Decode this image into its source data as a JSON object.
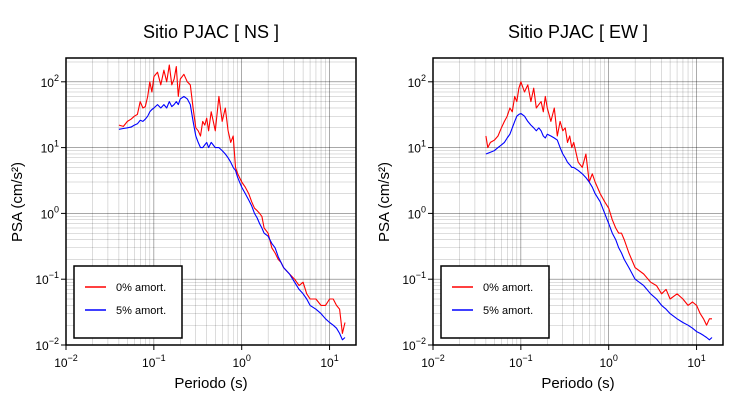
{
  "chart_data": [
    {
      "type": "line",
      "title": "Sitio PJAC [ NS ]",
      "xlabel": "Periodo (s)",
      "ylabel": "PSA (cm/s²)",
      "x_scale": "log",
      "y_scale": "log",
      "xlim": [
        0.01,
        20
      ],
      "ylim": [
        0.01,
        230
      ],
      "xticks": [
        {
          "base": "10",
          "exp": "−2"
        },
        {
          "base": "10",
          "exp": "−1"
        },
        {
          "base": "10",
          "exp": "0"
        },
        {
          "base": "10",
          "exp": "1"
        }
      ],
      "yticks": [
        {
          "base": "10",
          "exp": "−2"
        },
        {
          "base": "10",
          "exp": "−1"
        },
        {
          "base": "10",
          "exp": "0"
        },
        {
          "base": "10",
          "exp": "1"
        },
        {
          "base": "10",
          "exp": "2"
        }
      ],
      "grid": true,
      "legend_position": "bottom-left",
      "series": [
        {
          "name": "0% amort.",
          "color": "#ff0000",
          "x": [
            0.04,
            0.045,
            0.05,
            0.055,
            0.06,
            0.065,
            0.07,
            0.075,
            0.08,
            0.085,
            0.09,
            0.095,
            0.1,
            0.11,
            0.12,
            0.13,
            0.14,
            0.15,
            0.16,
            0.17,
            0.18,
            0.19,
            0.2,
            0.22,
            0.24,
            0.26,
            0.28,
            0.3,
            0.32,
            0.34,
            0.36,
            0.38,
            0.4,
            0.42,
            0.45,
            0.5,
            0.55,
            0.6,
            0.65,
            0.7,
            0.75,
            0.8,
            0.85,
            0.9,
            1.0,
            1.1,
            1.2,
            1.3,
            1.4,
            1.5,
            1.6,
            1.7,
            1.8,
            2.0,
            2.2,
            2.4,
            2.6,
            2.8,
            3.0,
            3.5,
            4.0,
            4.5,
            5.0,
            5.5,
            6.0,
            7.0,
            8.0,
            9.0,
            10.0,
            11.0,
            12.0,
            13.0,
            14.0,
            15.0
          ],
          "y": [
            22,
            21,
            25,
            27,
            30,
            32,
            50,
            40,
            42,
            60,
            100,
            70,
            120,
            140,
            90,
            150,
            100,
            180,
            90,
            110,
            170,
            60,
            110,
            130,
            100,
            90,
            40,
            20,
            18,
            15,
            25,
            22,
            28,
            18,
            35,
            18,
            60,
            25,
            40,
            18,
            12,
            15,
            5,
            4,
            3,
            2.5,
            2,
            1.5,
            1.2,
            1.1,
            1.0,
            0.9,
            0.6,
            0.5,
            0.3,
            0.25,
            0.2,
            0.18,
            0.15,
            0.12,
            0.1,
            0.08,
            0.09,
            0.06,
            0.05,
            0.05,
            0.04,
            0.04,
            0.05,
            0.05,
            0.04,
            0.035,
            0.015,
            0.022
          ]
        },
        {
          "name": "5% amort.",
          "color": "#0000ff",
          "x": [
            0.04,
            0.045,
            0.05,
            0.055,
            0.06,
            0.065,
            0.07,
            0.075,
            0.08,
            0.085,
            0.09,
            0.095,
            0.1,
            0.11,
            0.12,
            0.13,
            0.14,
            0.15,
            0.16,
            0.17,
            0.18,
            0.19,
            0.2,
            0.22,
            0.24,
            0.26,
            0.28,
            0.3,
            0.32,
            0.34,
            0.36,
            0.38,
            0.4,
            0.42,
            0.45,
            0.5,
            0.55,
            0.6,
            0.65,
            0.7,
            0.75,
            0.8,
            0.85,
            0.9,
            1.0,
            1.1,
            1.2,
            1.3,
            1.4,
            1.5,
            1.6,
            1.7,
            1.8,
            2.0,
            2.2,
            2.4,
            2.6,
            2.8,
            3.0,
            3.5,
            4.0,
            4.5,
            5.0,
            5.5,
            6.0,
            7.0,
            8.0,
            9.0,
            10.0,
            11.0,
            12.0,
            13.0,
            14.0,
            15.0
          ],
          "y": [
            19,
            19.5,
            20,
            20.5,
            22,
            23,
            26,
            25,
            27,
            30,
            35,
            38,
            40,
            45,
            40,
            45,
            40,
            50,
            42,
            45,
            50,
            45,
            55,
            60,
            55,
            45,
            25,
            15,
            12,
            10,
            10,
            11,
            12,
            10,
            12,
            10,
            10,
            9,
            8,
            7,
            6,
            5,
            4.5,
            3.5,
            2.5,
            2.0,
            1.6,
            1.3,
            1.0,
            0.85,
            0.7,
            0.6,
            0.5,
            0.45,
            0.35,
            0.3,
            0.22,
            0.18,
            0.15,
            0.12,
            0.09,
            0.07,
            0.06,
            0.05,
            0.04,
            0.035,
            0.03,
            0.025,
            0.022,
            0.02,
            0.018,
            0.015,
            0.012,
            0.013
          ]
        }
      ]
    },
    {
      "type": "line",
      "title": "Sitio PJAC [ EW ]",
      "xlabel": "Periodo (s)",
      "ylabel": "PSA (cm/s²)",
      "x_scale": "log",
      "y_scale": "log",
      "xlim": [
        0.01,
        20
      ],
      "ylim": [
        0.01,
        230
      ],
      "xticks": [
        {
          "base": "10",
          "exp": "−2"
        },
        {
          "base": "10",
          "exp": "−1"
        },
        {
          "base": "10",
          "exp": "0"
        },
        {
          "base": "10",
          "exp": "1"
        }
      ],
      "yticks": [
        {
          "base": "10",
          "exp": "−2"
        },
        {
          "base": "10",
          "exp": "−1"
        },
        {
          "base": "10",
          "exp": "0"
        },
        {
          "base": "10",
          "exp": "1"
        },
        {
          "base": "10",
          "exp": "2"
        }
      ],
      "grid": true,
      "legend_position": "bottom-left",
      "series": [
        {
          "name": "0% amort.",
          "color": "#ff0000",
          "x": [
            0.04,
            0.042,
            0.045,
            0.05,
            0.055,
            0.06,
            0.065,
            0.07,
            0.075,
            0.08,
            0.085,
            0.09,
            0.095,
            0.1,
            0.11,
            0.12,
            0.13,
            0.14,
            0.15,
            0.16,
            0.17,
            0.18,
            0.19,
            0.2,
            0.22,
            0.24,
            0.26,
            0.28,
            0.3,
            0.32,
            0.34,
            0.36,
            0.38,
            0.4,
            0.45,
            0.5,
            0.55,
            0.6,
            0.65,
            0.7,
            0.8,
            0.9,
            1.0,
            1.1,
            1.2,
            1.3,
            1.4,
            1.5,
            1.7,
            2.0,
            2.5,
            3.0,
            3.5,
            4.0,
            4.5,
            5.0,
            6.0,
            7.0,
            8.0,
            9.0,
            10.0,
            11.0,
            12.0,
            13.0,
            14.0,
            15.0
          ],
          "y": [
            15,
            10,
            12,
            13,
            15,
            20,
            25,
            30,
            40,
            35,
            60,
            50,
            80,
            100,
            70,
            90,
            50,
            80,
            40,
            45,
            50,
            35,
            60,
            40,
            25,
            40,
            15,
            25,
            18,
            20,
            12,
            15,
            10,
            12,
            6,
            5,
            8,
            3,
            4,
            3,
            2.0,
            1.5,
            1.2,
            0.8,
            0.6,
            0.5,
            0.5,
            0.4,
            0.25,
            0.15,
            0.12,
            0.09,
            0.08,
            0.06,
            0.07,
            0.05,
            0.06,
            0.05,
            0.04,
            0.045,
            0.04,
            0.03,
            0.025,
            0.02,
            0.025,
            0.025
          ]
        },
        {
          "name": "5% amort.",
          "color": "#0000ff",
          "x": [
            0.04,
            0.045,
            0.05,
            0.055,
            0.06,
            0.065,
            0.07,
            0.075,
            0.08,
            0.085,
            0.09,
            0.095,
            0.1,
            0.11,
            0.12,
            0.13,
            0.14,
            0.15,
            0.16,
            0.17,
            0.18,
            0.19,
            0.2,
            0.22,
            0.24,
            0.26,
            0.28,
            0.3,
            0.32,
            0.34,
            0.36,
            0.38,
            0.4,
            0.45,
            0.5,
            0.55,
            0.6,
            0.65,
            0.7,
            0.8,
            0.9,
            1.0,
            1.1,
            1.2,
            1.3,
            1.4,
            1.5,
            1.7,
            2.0,
            2.5,
            3.0,
            3.5,
            4.0,
            4.5,
            5.0,
            6.0,
            7.0,
            8.0,
            9.0,
            10.0,
            11.0,
            12.0,
            13.0,
            14.0,
            15.0
          ],
          "y": [
            8,
            8.5,
            9,
            10,
            11,
            12,
            14,
            16,
            20,
            25,
            30,
            32,
            33,
            30,
            25,
            22,
            20,
            18,
            20,
            18,
            15,
            14,
            16,
            15,
            14,
            13,
            10,
            8,
            7,
            6,
            5.5,
            5,
            5,
            4.5,
            4,
            3.5,
            3,
            2.5,
            2.0,
            1.5,
            1.0,
            0.7,
            0.5,
            0.4,
            0.3,
            0.25,
            0.2,
            0.15,
            0.1,
            0.08,
            0.06,
            0.05,
            0.04,
            0.035,
            0.03,
            0.025,
            0.022,
            0.02,
            0.018,
            0.016,
            0.015,
            0.014,
            0.013,
            0.012,
            0.013
          ]
        }
      ]
    }
  ]
}
